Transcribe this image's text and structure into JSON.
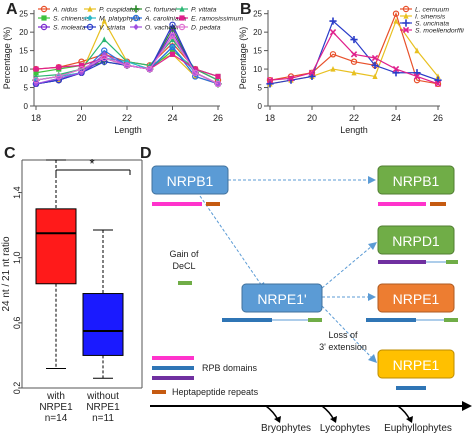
{
  "panels": {
    "A": "A",
    "B": "B",
    "C": "C",
    "D": "D"
  },
  "chart_data": [
    {
      "panel": "A",
      "type": "line",
      "xlabel": "Length",
      "ylabel": "Percentage (%)",
      "x": [
        18,
        19,
        20,
        21,
        22,
        23,
        24,
        25,
        26
      ],
      "xticks": [
        18,
        20,
        22,
        24,
        26
      ],
      "yticks": [
        0,
        5,
        10,
        15,
        20,
        25
      ],
      "ylim": [
        0,
        26
      ],
      "grid": false,
      "legend_position": "top",
      "series": [
        {
          "name": "A. nidus",
          "color": "#e8502a",
          "marker": "circle",
          "values": [
            10,
            10.5,
            12,
            14,
            12,
            11,
            17,
            10,
            7
          ]
        },
        {
          "name": "P. cuspidatus",
          "color": "#e8c020",
          "marker": "triangle",
          "values": [
            6,
            7,
            9,
            23,
            12,
            11,
            14,
            8,
            6
          ]
        },
        {
          "name": "C. fortunei",
          "color": "#2a8c2a",
          "marker": "plus",
          "values": [
            7,
            8,
            10,
            12,
            11,
            10,
            21,
            9,
            6
          ]
        },
        {
          "name": "P. vittata",
          "color": "#2bb673",
          "marker": "triangle",
          "values": [
            8,
            8.5,
            10,
            18,
            12,
            11,
            18,
            10,
            7
          ]
        },
        {
          "name": "S. chinensis",
          "color": "#3ec23e",
          "marker": "square",
          "values": [
            9,
            10,
            11,
            13,
            11,
            10,
            15,
            10,
            8
          ]
        },
        {
          "name": "M. platyphylla",
          "color": "#2ab8c8",
          "marker": "diamond",
          "values": [
            7,
            8,
            9,
            13,
            12,
            10,
            16,
            9,
            6
          ]
        },
        {
          "name": "A. caroliniana",
          "color": "#2a6ee0",
          "marker": "circle",
          "values": [
            6,
            7,
            9,
            15,
            11,
            10,
            16,
            8,
            6
          ]
        },
        {
          "name": "E. ramosissimum",
          "color": "#e0208c",
          "marker": "square",
          "values": [
            10,
            10.5,
            11,
            13,
            11,
            10,
            14,
            10,
            8
          ]
        },
        {
          "name": "S. moleata",
          "color": "#7a2ad0",
          "marker": "circle",
          "values": [
            6,
            7,
            9,
            13,
            11,
            10,
            20,
            9,
            6
          ]
        },
        {
          "name": "V. striata",
          "color": "#2a3cc8",
          "marker": "circle",
          "values": [
            6,
            7,
            9,
            12,
            11,
            10,
            22,
            9,
            6
          ]
        },
        {
          "name": "O. vachellii",
          "color": "#a050e0",
          "marker": "diamond",
          "values": [
            6,
            7.5,
            9,
            14,
            11,
            10,
            19,
            9,
            6
          ]
        },
        {
          "name": "D. pedata",
          "color": "#e070d0",
          "marker": "circle",
          "values": [
            7,
            8,
            10,
            13,
            11,
            10,
            19,
            9,
            6
          ]
        }
      ]
    },
    {
      "panel": "B",
      "type": "line",
      "xlabel": "Length",
      "ylabel": "Percentage (%)",
      "x": [
        18,
        19,
        20,
        21,
        22,
        23,
        24,
        25,
        26
      ],
      "xticks": [
        18,
        20,
        22,
        24,
        26
      ],
      "yticks": [
        0,
        5,
        10,
        15,
        20,
        25
      ],
      "ylim": [
        0,
        26
      ],
      "grid": false,
      "legend_position": "top-right",
      "series": [
        {
          "name": "L. cernuum",
          "color": "#e8502a",
          "marker": "circle",
          "values": [
            7,
            8,
            9,
            14,
            12,
            11,
            25,
            7,
            6
          ]
        },
        {
          "name": "I. sinensis",
          "color": "#e8c020",
          "marker": "triangle",
          "values": [
            6,
            7,
            8,
            10,
            9,
            8,
            23,
            15,
            8
          ]
        },
        {
          "name": "S. uncinata",
          "color": "#2a3cc8",
          "marker": "plus",
          "values": [
            6,
            7,
            8,
            23,
            18,
            11,
            9,
            9,
            7
          ]
        },
        {
          "name": "S. moellendorffii",
          "color": "#e0208c",
          "marker": "cross",
          "values": [
            7,
            7.5,
            9,
            20,
            14,
            13,
            10,
            8,
            6
          ]
        }
      ]
    },
    {
      "panel": "C",
      "type": "box",
      "ylabel": "24 nt / 21 nt ratio",
      "yticks": [
        0.2,
        0.6,
        1.0,
        1.4
      ],
      "ylim": [
        0.2,
        1.6
      ],
      "significance": "*",
      "groups": [
        {
          "label": "with NRPE1",
          "n_label": "n=14",
          "color": "#ff1a1a",
          "whisker_low": 0.32,
          "q1": 0.84,
          "median": 1.15,
          "q3": 1.3,
          "whisker_high": 1.6
        },
        {
          "label": "without NRPE1",
          "n_label": "n=11",
          "color": "#1a1aff",
          "whisker_low": 0.26,
          "q1": 0.4,
          "median": 0.55,
          "q3": 0.78,
          "whisker_high": 1.17
        }
      ]
    }
  ],
  "diagram": {
    "nodes": {
      "nrpb1_left": "NRPB1",
      "nrpb1_right": "NRPB1",
      "nrpd1": "NRPD1",
      "nrpe1_prime": "NRPE1'",
      "nrpe1_orange": "NRPE1",
      "nrpe1_yellow": "NRPE1"
    },
    "node_colors": {
      "blue": "#5b9bd5",
      "green": "#70ad47",
      "orange": "#ed7d31",
      "yellow": "#ffc000"
    },
    "annotations": {
      "gain_line1": "Gain of",
      "gain_line2": "DeCL",
      "loss_line1": "Loss of",
      "loss_line2": "3' extension"
    },
    "legend": [
      {
        "label": "RPB domains",
        "color": "#2f75b5"
      },
      {
        "label": "Heptapeptide repeats",
        "color": "#c55a11"
      }
    ],
    "legend_swatch_colors": {
      "rpb_domain_magenta": "#ff33cc",
      "rpb_domain_blue": "#2f75b5",
      "rpb_domain_purple": "#7030a0",
      "heptapeptide": "#c55a11",
      "decl": "#70ad47"
    },
    "timeline": [
      "Bryophytes",
      "Lycophytes",
      "Euphyllophytes"
    ]
  }
}
